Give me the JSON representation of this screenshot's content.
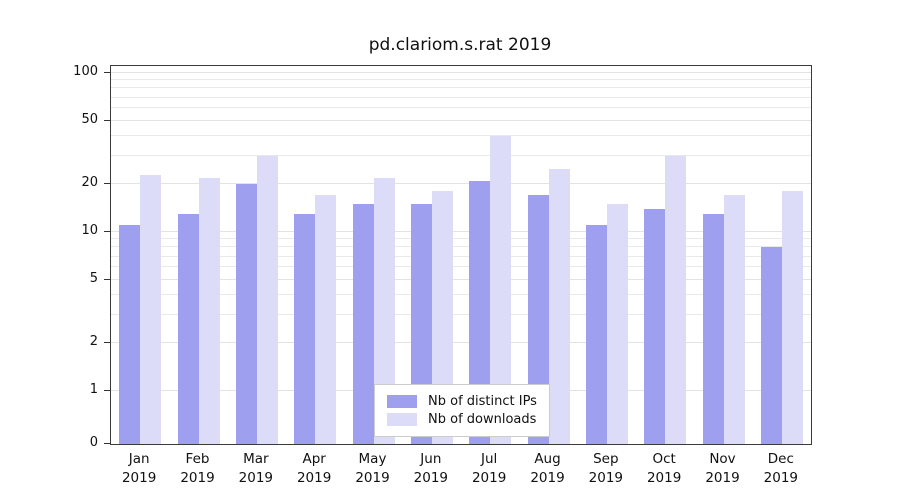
{
  "chart_data": {
    "type": "bar",
    "title": "pd.clariom.s.rat 2019",
    "categories": [
      "Jan 2019",
      "Feb 2019",
      "Mar 2019",
      "Apr 2019",
      "May 2019",
      "Jun 2019",
      "Jul 2019",
      "Aug 2019",
      "Sep 2019",
      "Oct 2019",
      "Nov 2019",
      "Dec 2019"
    ],
    "series": [
      {
        "name": "Nb of distinct IPs",
        "color": "#9f9ff0",
        "values": [
          11,
          13,
          20,
          13,
          15,
          15,
          21,
          17,
          11,
          14,
          13,
          8
        ]
      },
      {
        "name": "Nb of downloads",
        "color": "#dcdcf9",
        "values": [
          23,
          22,
          30,
          17,
          22,
          18,
          40,
          25,
          15,
          30,
          17,
          18
        ]
      }
    ],
    "xlabel": "",
    "ylabel": "",
    "yscale": "log-with-zero-baseline",
    "ylim": [
      0,
      100
    ],
    "yticks": [
      0,
      1,
      2,
      5,
      10,
      20,
      50,
      100
    ],
    "gridlines": [
      1,
      2,
      3,
      4,
      5,
      6,
      7,
      8,
      9,
      10,
      20,
      30,
      40,
      50,
      60,
      70,
      80,
      90,
      100
    ],
    "grid": "horizontal",
    "legend_position": "inside bottom-center",
    "plot_border_color": "#3a3a3a",
    "grid_color": "#e9e9e9"
  }
}
